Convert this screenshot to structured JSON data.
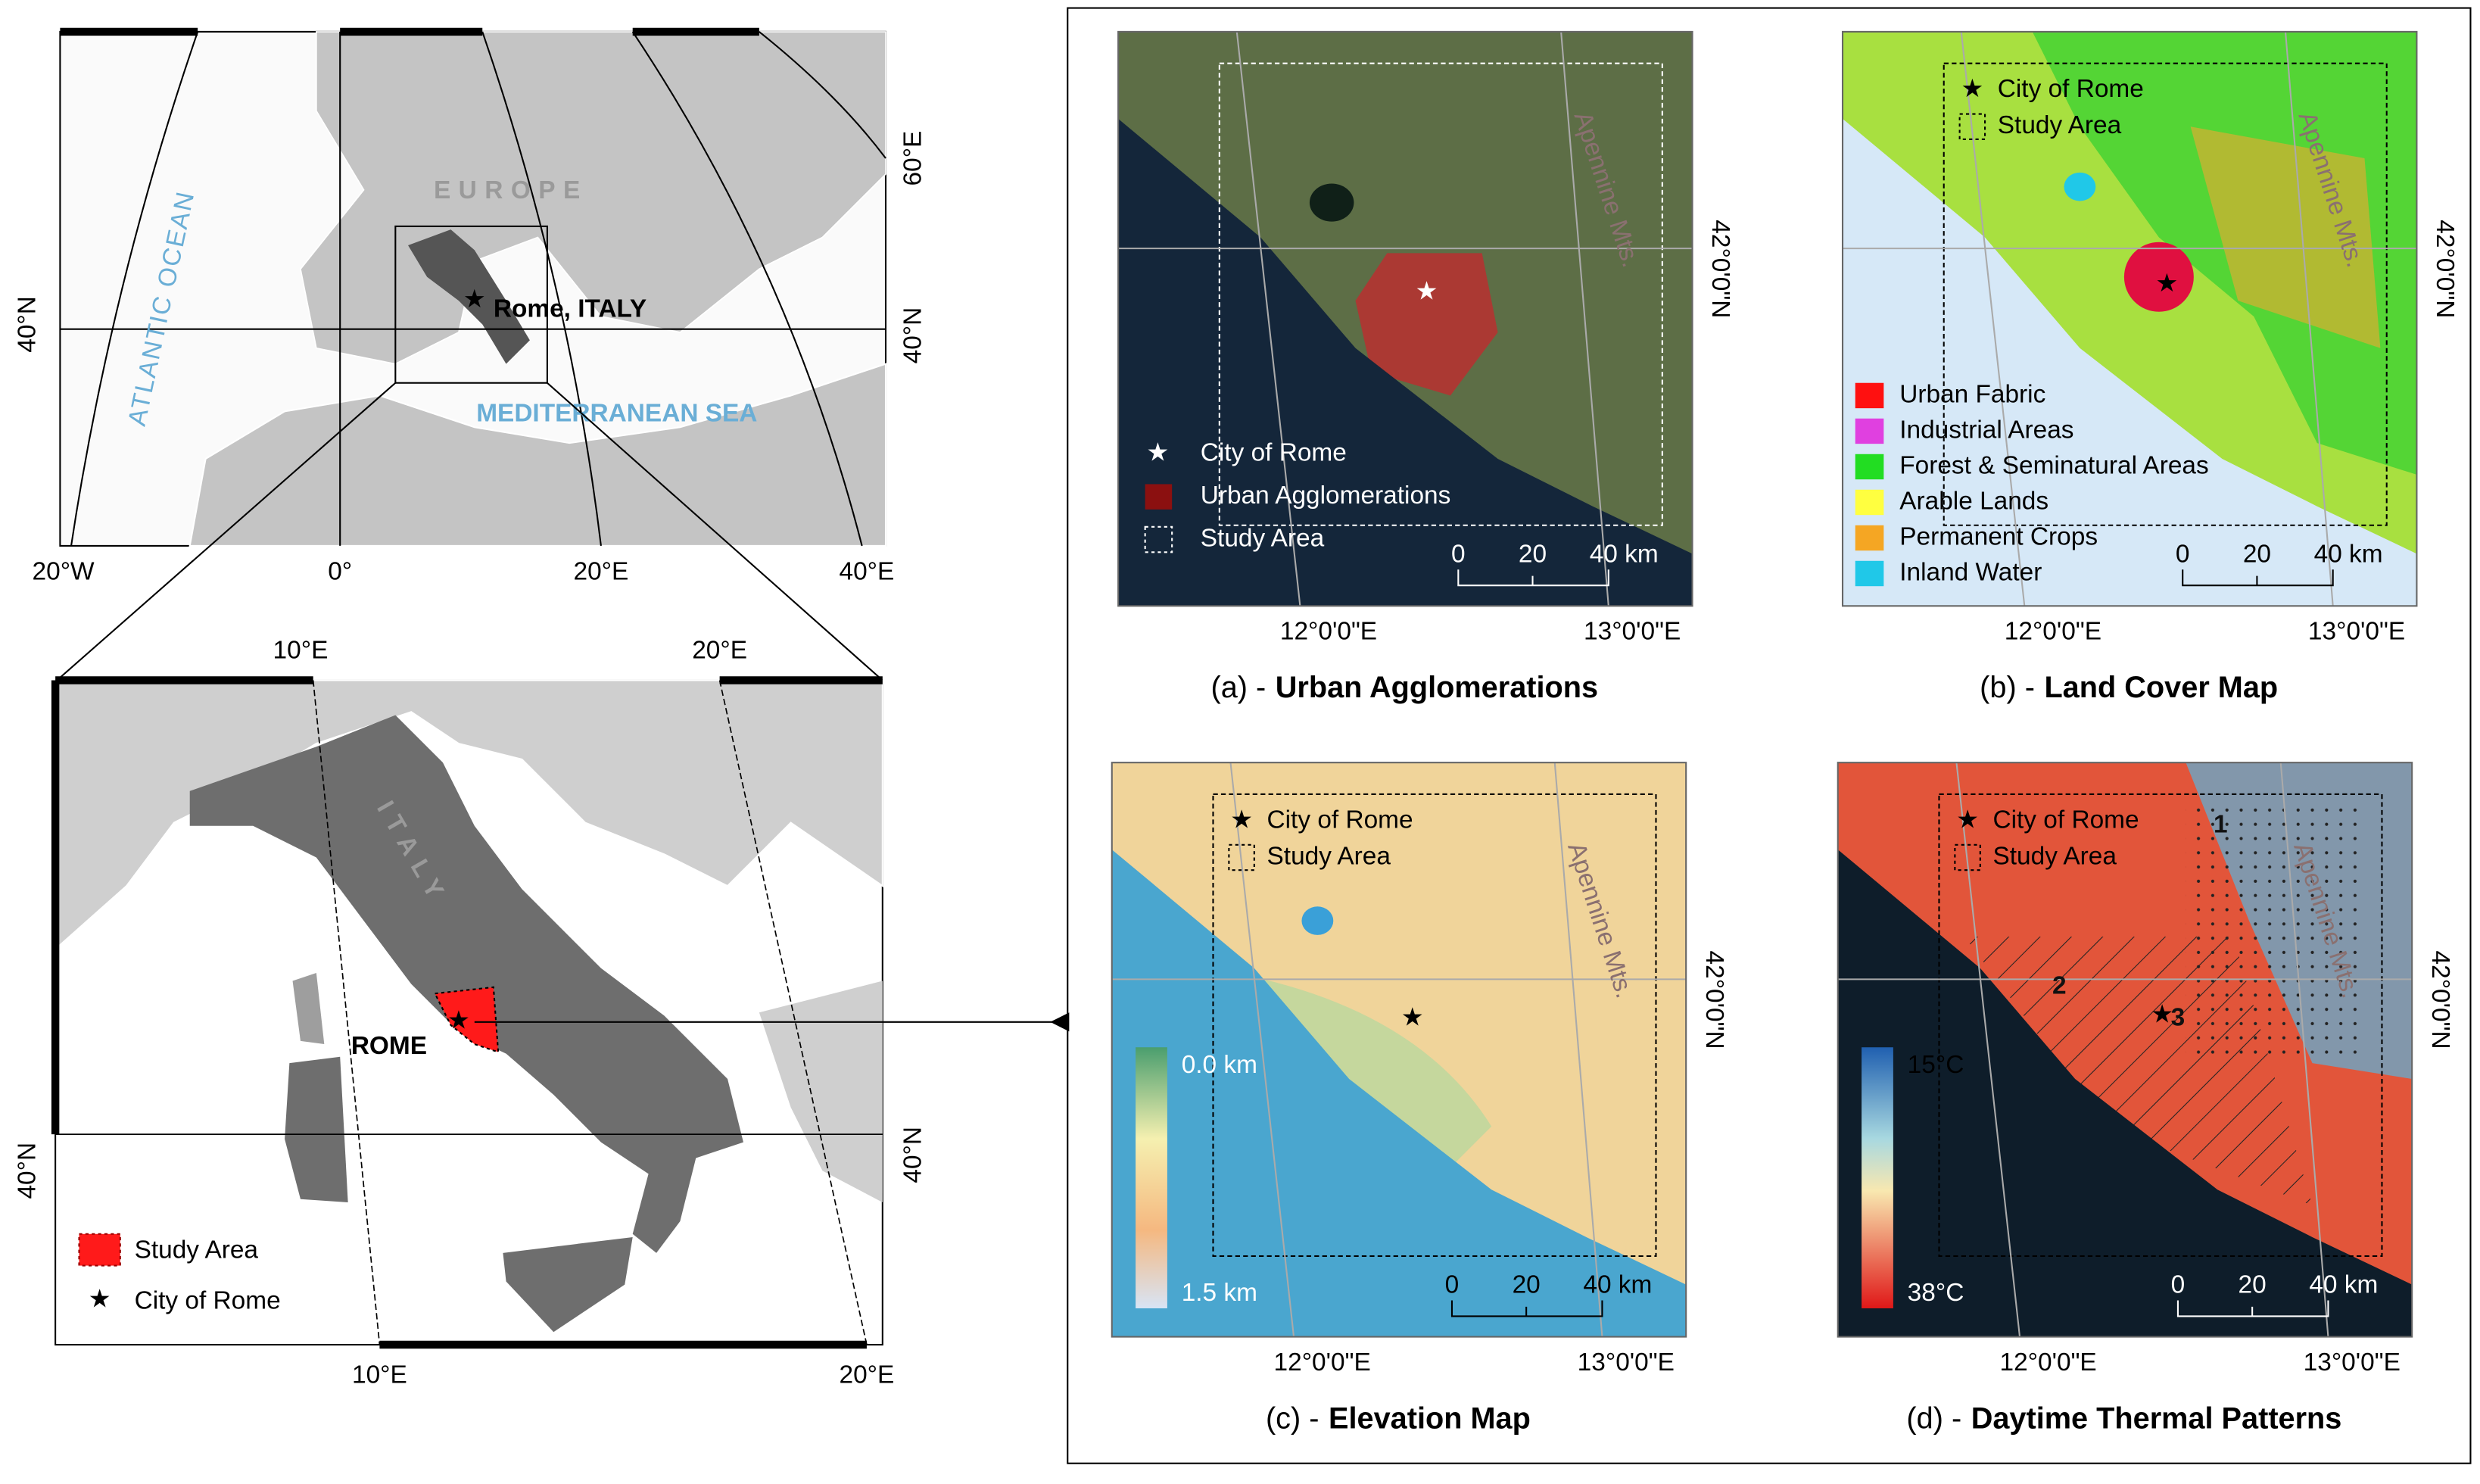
{
  "overview_map": {
    "region_label": "EUROPE",
    "ocean_label": "ATLANTIC OCEAN",
    "sea_label": "MEDITERRANEAN SEA",
    "city_label": "Rome, ITALY",
    "bottom_labels": [
      "20°W",
      "0°",
      "20°E",
      "40°E"
    ],
    "left_labels": [
      "40°N"
    ],
    "right_labels": [
      "60°E",
      "40°N"
    ]
  },
  "italy_map": {
    "country_label": "ITALY",
    "city_label": "ROME",
    "top_labels": [
      "10°E",
      "20°E"
    ],
    "bottom_labels": [
      "10°E",
      "20°E"
    ],
    "left_labels": [
      "40°N"
    ],
    "right_labels": [
      "40°N"
    ],
    "legend": [
      "Study Area",
      "City of Rome"
    ]
  },
  "panels": [
    {
      "id_label": "(a) -",
      "title": "Urban Agglomerations",
      "legend": [
        "City of Rome",
        "Urban Agglomerations",
        "Study Area"
      ],
      "mountains_label": "Apennine Mts.",
      "scale_labels": [
        "0",
        "20",
        "40 km"
      ],
      "lon_labels": [
        "12°0'0\"E",
        "13°0'0\"E"
      ],
      "lat_labels": [
        "42°0'0\"N"
      ]
    },
    {
      "id_label": "(b) -",
      "title": "Land Cover Map",
      "legend": [
        "City of Rome",
        "Study Area"
      ],
      "classes": [
        {
          "name": "Urban Fabric",
          "color": "#ff1010"
        },
        {
          "name": "Industrial Areas",
          "color": "#e040e0"
        },
        {
          "name": "Forest & Seminatural Areas",
          "color": "#22dd22"
        },
        {
          "name": "Arable Lands",
          "color": "#ffff40"
        },
        {
          "name": "Permanent Crops",
          "color": "#f5a623"
        },
        {
          "name": "Inland Water",
          "color": "#20c8e8"
        }
      ],
      "mountains_label": "Apennine Mts.",
      "scale_labels": [
        "0",
        "20",
        "40 km"
      ],
      "lon_labels": [
        "12°0'0\"E",
        "13°0'0\"E"
      ],
      "lat_labels": [
        "42°0'0\"N"
      ]
    },
    {
      "id_label": "(c) -",
      "title": "Elevation Map",
      "legend": [
        "City of Rome",
        "Study Area"
      ],
      "colorbar_labels": [
        "0.0 km",
        "1.5 km"
      ],
      "mountains_label": "Apennine Mts.",
      "scale_labels": [
        "0",
        "20",
        "40 km"
      ],
      "lon_labels": [
        "12°0'0\"E",
        "13°0'0\"E"
      ],
      "lat_labels": [
        "42°0'0\"N"
      ]
    },
    {
      "id_label": "(d) -",
      "title": "Daytime Thermal Patterns",
      "legend": [
        "City of Rome",
        "Study Area"
      ],
      "colorbar_labels": [
        "15°C",
        "38°C"
      ],
      "zone_labels": [
        "1",
        "2",
        "3"
      ],
      "mountains_label": "Apennine Mts.",
      "scale_labels": [
        "0",
        "20",
        "40 km"
      ],
      "lon_labels": [
        "12°0'0\"E",
        "13°0'0\"E"
      ],
      "lat_labels": [
        "42°0'0\"N"
      ]
    }
  ]
}
